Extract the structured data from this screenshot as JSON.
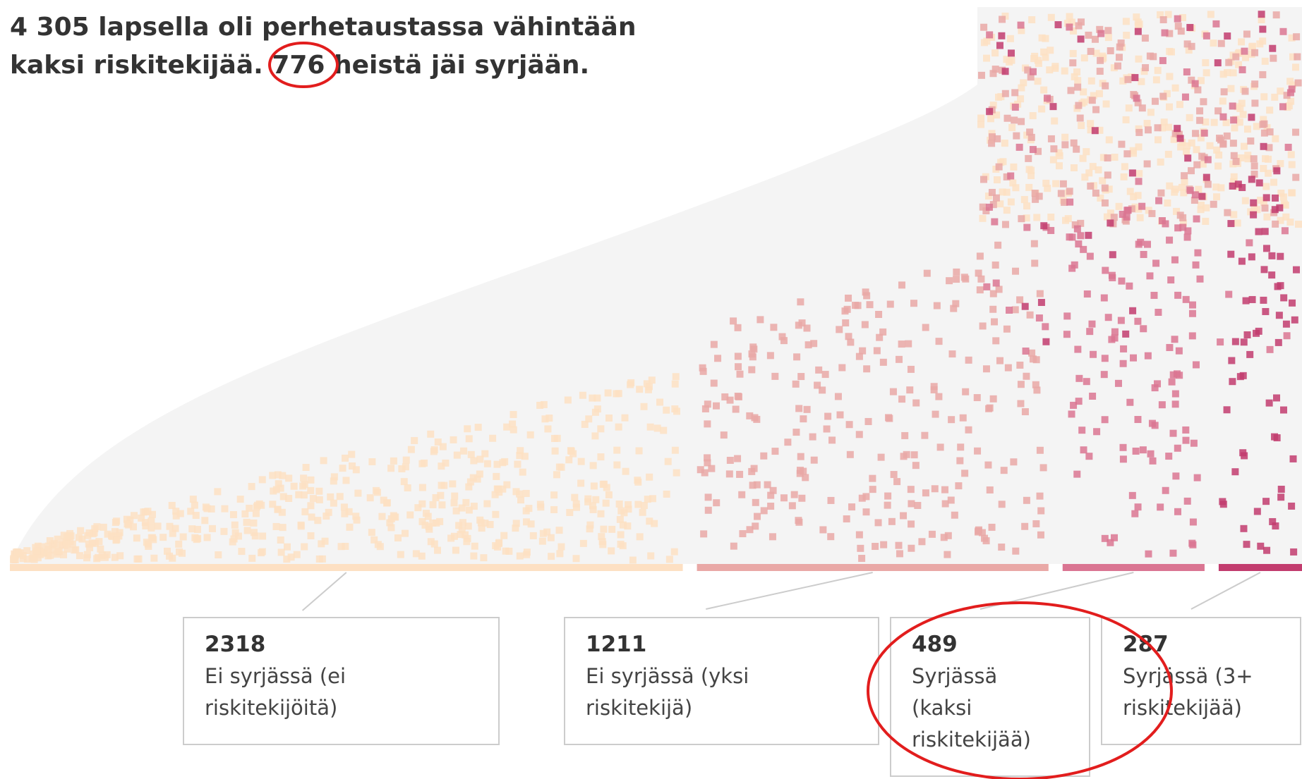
{
  "title_lines": [
    "4 305 lapsella oli perhetaustassa vähintään",
    "kaksi riskitekijää. 776 heistä jäi syrjään."
  ],
  "groups": [
    {
      "count": 2318,
      "label_lines": [
        "Ei syrjässä (ei",
        "riskitekijöitä)"
      ],
      "color": "#fde0c3"
    },
    {
      "count": 1211,
      "label_lines": [
        "Ei syrjässä (yksi",
        "riskitekijä)"
      ],
      "color": "#e9a8a6"
    },
    {
      "count": 489,
      "label_lines": [
        "Syrjässä",
        "(kaksi",
        "riskitekijää)"
      ],
      "color": "#da7592"
    },
    {
      "count": 287,
      "label_lines": [
        "Syrjässä (3+",
        "riskitekijää)"
      ],
      "color": "#c23c6e"
    }
  ]
}
